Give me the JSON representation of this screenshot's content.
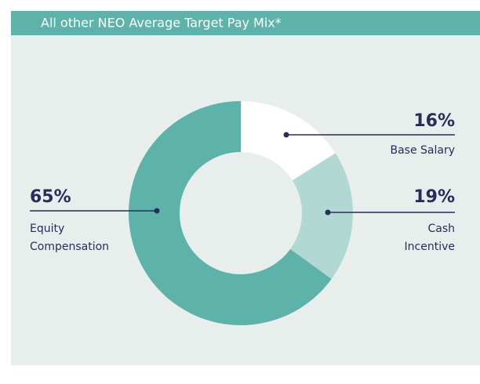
{
  "chart_data": {
    "type": "pie",
    "donut": true,
    "title": "All other NEO Average Target Pay Mix*",
    "categories": [
      [
        "Base Salary"
      ],
      [
        "Cash",
        "Incentive"
      ],
      [
        "Equity",
        "Compensation"
      ]
    ],
    "values": [
      16,
      19,
      65
    ],
    "value_labels": [
      "16%",
      "19%",
      "65%"
    ],
    "colors": [
      "#ffffff",
      "#b2d8d3",
      "#5db2a9"
    ]
  }
}
